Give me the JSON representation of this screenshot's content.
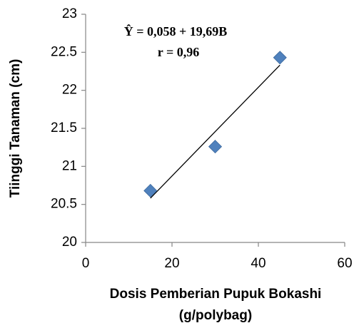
{
  "chart_data": {
    "type": "scatter",
    "xlabel": [
      "Dosis Pemberian Pupuk Bokashi",
      "(g/polybag)"
    ],
    "ylabel": "Tiinggi Tanaman (cm)",
    "annotations": [
      "Ŷ = 0,058 + 19,69B",
      "r = 0,96"
    ],
    "x": [
      15,
      30,
      45
    ],
    "values": [
      20.68,
      21.26,
      22.43
    ],
    "color": "#4f81bd",
    "xlim": [
      0,
      60
    ],
    "xticks": [
      0,
      20,
      40,
      60
    ],
    "ylim": [
      20,
      23
    ],
    "yticks": [
      20,
      20.5,
      21,
      21.5,
      22,
      22.5,
      23
    ],
    "trendline": "linear",
    "grid": false
  }
}
